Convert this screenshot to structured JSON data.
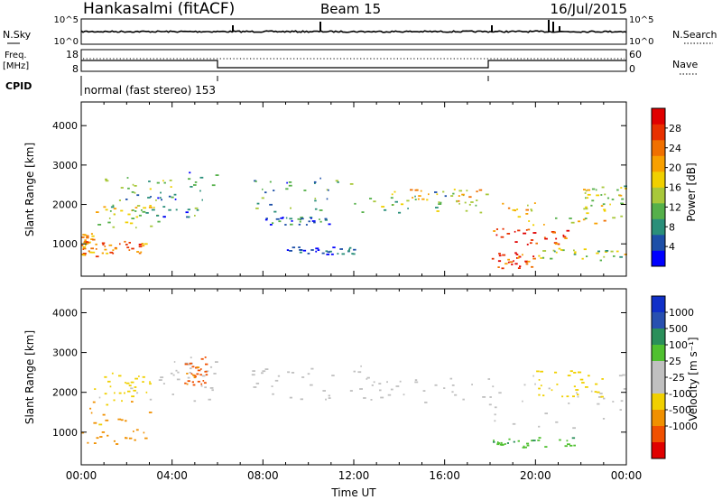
{
  "header": {
    "station": "Hankasalmi (fitACF)",
    "beam": "Beam 15",
    "date": "16/Jul/2015"
  },
  "noise_panel": {
    "left_label": "N.Sky",
    "right_label": "N.Search",
    "left_ticks": [
      "10^5",
      "10^0"
    ],
    "right_ticks": [
      "10^5",
      "10^0"
    ]
  },
  "freq_panel": {
    "left_label_top": "Freq.",
    "left_label_bottom": "[MHz]",
    "right_label": "Nave",
    "left_ticks": [
      "18",
      "8"
    ],
    "right_ticks": [
      "60",
      "0"
    ]
  },
  "cpid_panel": {
    "label": "CPID",
    "text": "normal (fast stereo) 153"
  },
  "colors": {
    "power_scale": [
      "#0000ff",
      "#1d4fa8",
      "#2a8f7a",
      "#55b04a",
      "#a8c83a",
      "#f0d000",
      "#f8a000",
      "#f07000",
      "#e83000",
      "#e00000"
    ],
    "velocity_scale": [
      "#1030c8",
      "#2850b0",
      "#2a8f5a",
      "#50c030",
      "#c0c0c0",
      "#c0c0c0",
      "#f0d000",
      "#f09000",
      "#f05000",
      "#e00000"
    ]
  },
  "chart_data": [
    {
      "type": "heatmap",
      "name": "power",
      "ylabel": "Slant Range [km]",
      "yticks": [
        1000,
        2000,
        3000,
        4000
      ],
      "ylim": [
        180,
        4600
      ],
      "xlim_hours": [
        0,
        24
      ],
      "colorbar": {
        "label": "Power [dB]",
        "ticks": [
          "4",
          "8",
          "12",
          "16",
          "20",
          "24",
          "28"
        ],
        "range": [
          0,
          32
        ]
      },
      "echo_regions": [
        {
          "t": [
            0.0,
            0.5
          ],
          "r": [
            700,
            1300
          ],
          "v": 22
        },
        {
          "t": [
            0.5,
            3.0
          ],
          "r": [
            700,
            1100
          ],
          "v": 24
        },
        {
          "t": [
            0.5,
            3.5
          ],
          "r": [
            1400,
            2000
          ],
          "v": 16
        },
        {
          "t": [
            1.0,
            4.0
          ],
          "r": [
            1800,
            2700
          ],
          "v": 12
        },
        {
          "t": [
            3.0,
            6.0
          ],
          "r": [
            1700,
            2900
          ],
          "v": 8
        },
        {
          "t": [
            7.5,
            12.0
          ],
          "r": [
            1800,
            2700
          ],
          "v": 9
        },
        {
          "t": [
            8.0,
            11.0
          ],
          "r": [
            1500,
            1700
          ],
          "v": 6
        },
        {
          "t": [
            9.0,
            12.0
          ],
          "r": [
            750,
            950
          ],
          "v": 5
        },
        {
          "t": [
            12.0,
            18.0
          ],
          "r": [
            1800,
            2400
          ],
          "v": 11
        },
        {
          "t": [
            14.0,
            18.0
          ],
          "r": [
            2000,
            2400
          ],
          "v": 18
        },
        {
          "t": [
            17.5,
            24.0
          ],
          "r": [
            1500,
            2100
          ],
          "v": 17
        },
        {
          "t": [
            18.0,
            21.5
          ],
          "r": [
            1000,
            1400
          ],
          "v": 26
        },
        {
          "t": [
            18.0,
            20.0
          ],
          "r": [
            400,
            800
          ],
          "v": 27
        },
        {
          "t": [
            20.0,
            24.0
          ],
          "r": [
            600,
            900
          ],
          "v": 14
        },
        {
          "t": [
            22.0,
            24.0
          ],
          "r": [
            1900,
            2500
          ],
          "v": 15
        }
      ]
    },
    {
      "type": "heatmap",
      "name": "velocity",
      "xlabel": "Time UT",
      "ylabel": "Slant Range [km]",
      "xticks": [
        "00:00",
        "04:00",
        "08:00",
        "12:00",
        "16:00",
        "20:00",
        "00:00"
      ],
      "yticks": [
        1000,
        2000,
        3000,
        4000
      ],
      "ylim": [
        180,
        4600
      ],
      "xlim_hours": [
        0,
        24
      ],
      "colorbar": {
        "label": "Velocity [m s⁻¹]",
        "ticks": [
          "1000",
          "500",
          "100",
          "25",
          "-25",
          "-100",
          "-500",
          "-1000"
        ],
        "range": [
          -1500,
          1500
        ]
      },
      "echo_regions": [
        {
          "t": [
            0.0,
            3.0
          ],
          "r": [
            700,
            1800
          ],
          "v": -150
        },
        {
          "t": [
            0.5,
            3.0
          ],
          "r": [
            1800,
            2500
          ],
          "v": -30
        },
        {
          "t": [
            3.0,
            6.0
          ],
          "r": [
            1800,
            2900
          ],
          "v": 0
        },
        {
          "t": [
            4.5,
            5.5
          ],
          "r": [
            2200,
            2900
          ],
          "v": -600
        },
        {
          "t": [
            7.5,
            12.5
          ],
          "r": [
            1800,
            2700
          ],
          "v": 0
        },
        {
          "t": [
            12.5,
            18.0
          ],
          "r": [
            1700,
            2400
          ],
          "v": 0
        },
        {
          "t": [
            18.0,
            24.0
          ],
          "r": [
            1100,
            2500
          ],
          "v": 0
        },
        {
          "t": [
            18.0,
            22.0
          ],
          "r": [
            600,
            900
          ],
          "v": 80
        },
        {
          "t": [
            20.0,
            23.0
          ],
          "r": [
            1900,
            2600
          ],
          "v": -60
        }
      ]
    }
  ]
}
